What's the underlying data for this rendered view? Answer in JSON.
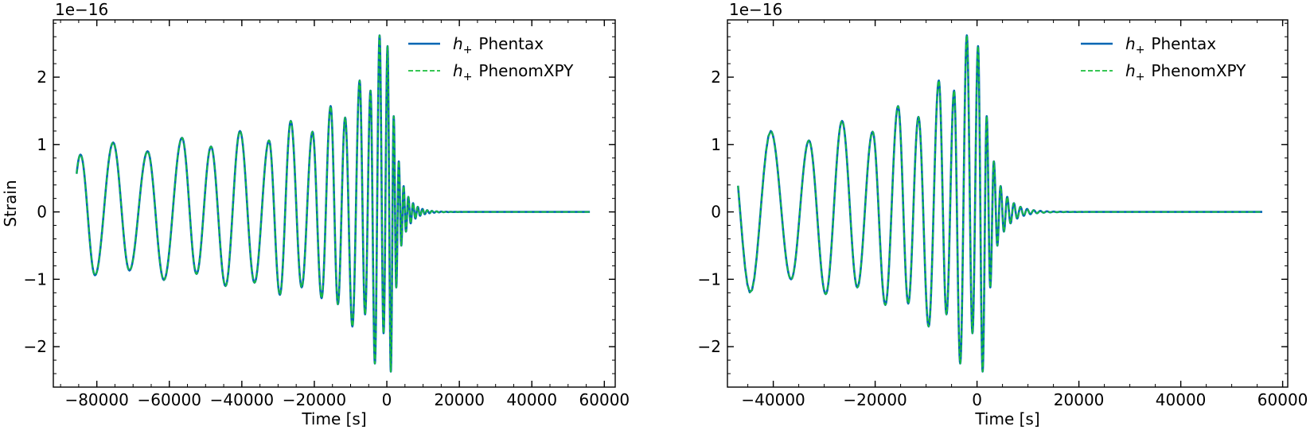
{
  "chart_data": [
    {
      "type": "line",
      "title": "",
      "xlabel": "Time [s]",
      "ylabel": "Strain",
      "offset_text": "1e−16",
      "xlim": [
        -92000,
        63000
      ],
      "ylim": [
        -2.6,
        2.85
      ],
      "xticks": [
        -80000,
        -60000,
        -40000,
        -20000,
        0,
        20000,
        40000,
        60000
      ],
      "xtick_labels": [
        "−80000",
        "−60000",
        "−40000",
        "−20000",
        "0",
        "20000",
        "40000",
        "60000"
      ],
      "yticks": [
        -2,
        -1,
        0,
        1,
        2
      ],
      "ytick_labels": [
        "−2",
        "−1",
        "0",
        "1",
        "2"
      ],
      "grid": false,
      "legend_position": "top-right",
      "waveform": {
        "t_start": -85000,
        "t_end": 56000,
        "start_phase": 2.3,
        "peaks": [
          {
            "t": -84500,
            "v": 0.85
          },
          {
            "t": -80500,
            "v": -0.94
          },
          {
            "t": -75500,
            "v": 1.03
          },
          {
            "t": -71000,
            "v": -0.87
          },
          {
            "t": -66000,
            "v": 0.9
          },
          {
            "t": -61500,
            "v": -1.01
          },
          {
            "t": -56500,
            "v": 1.1
          },
          {
            "t": -52500,
            "v": -0.92
          },
          {
            "t": -48500,
            "v": 0.97
          },
          {
            "t": -44500,
            "v": -1.1
          },
          {
            "t": -40500,
            "v": 1.2
          },
          {
            "t": -36500,
            "v": -1.05
          },
          {
            "t": -32500,
            "v": 1.06
          },
          {
            "t": -29500,
            "v": -1.23
          },
          {
            "t": -26500,
            "v": 1.35
          },
          {
            "t": -23500,
            "v": -1.12
          },
          {
            "t": -20500,
            "v": 1.19
          },
          {
            "t": -18000,
            "v": -1.28
          },
          {
            "t": -15500,
            "v": 1.57
          },
          {
            "t": -13500,
            "v": -1.37
          },
          {
            "t": -11500,
            "v": 1.4
          },
          {
            "t": -9500,
            "v": -1.7
          },
          {
            "t": -7500,
            "v": 1.95
          },
          {
            "t": -6000,
            "v": -1.52
          },
          {
            "t": -4500,
            "v": 1.8
          },
          {
            "t": -3300,
            "v": -2.25
          },
          {
            "t": -2000,
            "v": 2.62
          },
          {
            "t": -900,
            "v": -1.8
          },
          {
            "t": 200,
            "v": 2.46
          },
          {
            "t": 1100,
            "v": -2.37
          },
          {
            "t": 1900,
            "v": 1.42
          },
          {
            "t": 2600,
            "v": -1.12
          },
          {
            "t": 3300,
            "v": 0.75
          },
          {
            "t": 4000,
            "v": -0.5
          }
        ],
        "ringdown_tau": 2400,
        "ringdown_period": 1300,
        "ringdown_amplitude": 0.5
      },
      "series": [
        {
          "name": "$h_+$ Phentax",
          "label_math": "h",
          "label_sub": "+",
          "label_text": "Phentax",
          "color": "#0066b3",
          "style": "solid"
        },
        {
          "name": "$h_+$ PhenomXPY",
          "label_math": "h",
          "label_sub": "+",
          "label_text": "PhenomXPY",
          "color": "#1bbf3c",
          "style": "dashed"
        }
      ]
    },
    {
      "type": "line",
      "title": "",
      "xlabel": "Time [s]",
      "ylabel": "",
      "offset_text": "1e−16",
      "xlim": [
        -49000,
        61000
      ],
      "ylim": [
        -2.6,
        2.85
      ],
      "xticks": [
        -40000,
        -20000,
        0,
        20000,
        40000,
        60000
      ],
      "xtick_labels": [
        "−40000",
        "−20000",
        "0",
        "20000",
        "40000",
        "60000"
      ],
      "yticks": [
        -2,
        -1,
        0,
        1,
        2
      ],
      "ytick_labels": [
        "−2",
        "−1",
        "0",
        "1",
        "2"
      ],
      "grid": false,
      "legend_position": "top-right",
      "waveform": {
        "t_start": -44000,
        "t_end": 56000,
        "start_phase": -1.9,
        "peaks": [
          {
            "t": -40500,
            "v": 1.2
          },
          {
            "t": -36500,
            "v": -1.0
          },
          {
            "t": -33000,
            "v": 1.06
          },
          {
            "t": -29700,
            "v": -1.22
          },
          {
            "t": -26500,
            "v": 1.35
          },
          {
            "t": -23500,
            "v": -1.12
          },
          {
            "t": -20500,
            "v": 1.19
          },
          {
            "t": -18000,
            "v": -1.38
          },
          {
            "t": -15500,
            "v": 1.57
          },
          {
            "t": -13500,
            "v": -1.36
          },
          {
            "t": -11500,
            "v": 1.41
          },
          {
            "t": -9500,
            "v": -1.7
          },
          {
            "t": -7500,
            "v": 1.95
          },
          {
            "t": -6000,
            "v": -1.52
          },
          {
            "t": -4500,
            "v": 1.8
          },
          {
            "t": -3300,
            "v": -2.25
          },
          {
            "t": -2000,
            "v": 2.62
          },
          {
            "t": -900,
            "v": -1.8
          },
          {
            "t": 200,
            "v": 2.46
          },
          {
            "t": 1100,
            "v": -2.37
          },
          {
            "t": 1900,
            "v": 1.42
          },
          {
            "t": 2600,
            "v": -1.12
          },
          {
            "t": 3300,
            "v": 0.75
          },
          {
            "t": 4000,
            "v": -0.5
          }
        ],
        "ringdown_tau": 2400,
        "ringdown_period": 1300,
        "ringdown_amplitude": 0.5
      },
      "series": [
        {
          "name": "$h_+$ Phentax",
          "label_math": "h",
          "label_sub": "+",
          "label_text": "Phentax",
          "color": "#0066b3",
          "style": "solid"
        },
        {
          "name": "$h_+$ PhenomXPY",
          "label_math": "h",
          "label_sub": "+",
          "label_text": "PhenomXPY",
          "color": "#1bbf3c",
          "style": "dashed"
        }
      ]
    }
  ]
}
